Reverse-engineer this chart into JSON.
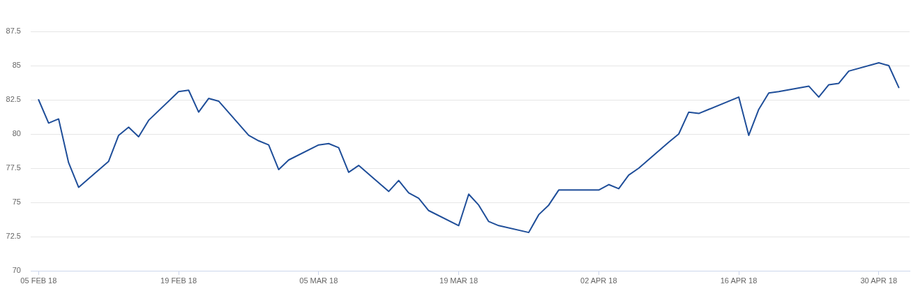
{
  "chart_data": {
    "type": "line",
    "x": [
      "--02-05",
      "--02-06",
      "--02-07",
      "--02-08",
      "--02-09",
      "--02-12",
      "--02-13",
      "--02-14",
      "--02-15",
      "--02-16",
      "--02-19",
      "--02-20",
      "--02-21",
      "--02-22",
      "--02-23",
      "--02-26",
      "--02-27",
      "--02-28",
      "--03-01",
      "--03-02",
      "--03-05",
      "--03-06",
      "--03-07",
      "--03-08",
      "--03-09",
      "--03-12",
      "--03-13",
      "--03-14",
      "--03-15",
      "--03-16",
      "--03-19",
      "--03-20",
      "--03-21",
      "--03-22",
      "--03-23",
      "--03-26",
      "--03-27",
      "--03-28",
      "--03-29",
      "--04-02",
      "--04-03",
      "--04-04",
      "--04-05",
      "--04-06",
      "--04-09",
      "--04-10",
      "--04-11",
      "--04-12",
      "--04-13",
      "--04-16",
      "--04-17",
      "--04-18",
      "--04-19",
      "--04-20",
      "--04-23",
      "--04-24",
      "--04-25",
      "--04-26",
      "--04-27",
      "--04-30",
      "--05-01",
      "--05-02"
    ],
    "series": [
      {
        "color": "#1f4e99",
        "values": [
          82.5,
          80.8,
          81.1,
          77.9,
          76.1,
          78.0,
          79.9,
          80.5,
          79.8,
          81.0,
          83.1,
          83.2,
          81.6,
          82.6,
          82.4,
          79.9,
          79.5,
          79.2,
          77.4,
          78.1,
          79.2,
          79.3,
          79.0,
          77.2,
          77.7,
          75.8,
          76.6,
          75.7,
          75.3,
          74.4,
          73.3,
          75.6,
          74.8,
          73.6,
          73.3,
          72.8,
          74.1,
          74.8,
          75.9,
          75.9,
          76.3,
          76.0,
          77.0,
          77.5,
          79.4,
          80.0,
          81.6,
          81.5,
          81.8,
          82.7,
          79.9,
          81.8,
          83.0,
          83.1,
          83.5,
          82.7,
          83.6,
          83.7,
          84.6,
          85.2,
          85.0,
          83.4
        ]
      }
    ],
    "xlim": [
      "--02-04T05:00",
      "--05-03T02:00"
    ],
    "xticks": [
      {
        "value": "--02-05",
        "label": "05 FEB 18"
      },
      {
        "value": "--02-19",
        "label": "19 FEB 18"
      },
      {
        "value": "--03-05",
        "label": "05 MAR 18"
      },
      {
        "value": "--03-19",
        "label": "19 MAR 18"
      },
      {
        "value": "--04-02",
        "label": "02 APR 18"
      },
      {
        "value": "--04-16",
        "label": "16 APR 18"
      },
      {
        "value": "--04-30",
        "label": "30 APR 18"
      }
    ],
    "ylim": [
      70,
      87.5
    ],
    "yticks": [
      70,
      72.5,
      75,
      77.5,
      80,
      82.5,
      85,
      87.5
    ],
    "grid": "y",
    "legend": false,
    "marker": "none",
    "line_style": "solid"
  }
}
